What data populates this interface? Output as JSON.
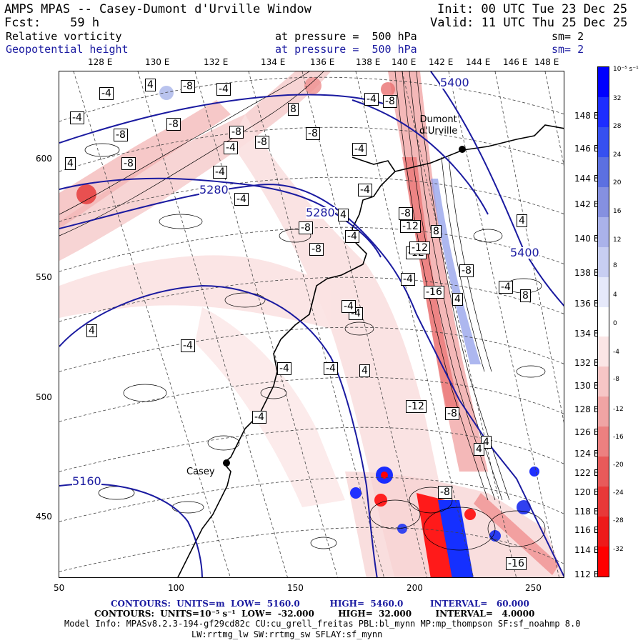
{
  "header": {
    "title": "AMPS MPAS -- Casey-Dumont d'Urville Window",
    "forecast": "Fcst:    59 h",
    "init": "Init: 00 UTC Tue 23 Dec 25",
    "valid": "Valid: 11 UTC Thu 25 Dec 25",
    "field1_name": "Relative vorticity",
    "field1_level": "at pressure =  500 hPa",
    "field1_sm": "sm= 2",
    "field2_name": "Geopotential height",
    "field2_level": "at pressure =  500 hPa",
    "field2_sm": "sm= 2"
  },
  "axes": {
    "top_longitudes": [
      "128 E",
      "130 E",
      "132 E",
      "134 E",
      "136 E",
      "138 E",
      "140 E",
      "142 E",
      "144 E",
      "146 E",
      "148 E"
    ],
    "right_longitudes": [
      "148 E",
      "146 E",
      "144 E",
      "142 E",
      "140 E",
      "138 E",
      "136 E",
      "134 E",
      "132 E",
      "130 E",
      "128 E",
      "126 E",
      "124 E",
      "122 E",
      "120 E",
      "118 E",
      "116 E",
      "114 E",
      "112 E"
    ],
    "left_ticks": [
      "600",
      "550",
      "500",
      "450"
    ],
    "bottom_ticks": [
      "50",
      "100",
      "150",
      "200",
      "250"
    ]
  },
  "map": {
    "stations": [
      {
        "name": "Dumont\nd'Urville"
      },
      {
        "name": "Casey"
      }
    ],
    "height_labels": [
      "5400",
      "5280",
      "5280",
      "5400",
      "5160"
    ],
    "vorticity_labels": [
      "-4",
      "4",
      "-8",
      "-4",
      "-8",
      "-4",
      "-8",
      "-8",
      "-4",
      "4",
      "-8",
      "8",
      "-8",
      "-8",
      "-4",
      "-4",
      "4",
      "-8",
      "-8",
      "-4",
      "-8",
      "-4",
      "-4",
      "-4",
      "-8",
      "-12",
      "-12",
      "-16",
      "-12",
      "-8",
      "-4",
      "8",
      "4",
      "8",
      "4",
      "-4",
      "-4",
      "-4",
      "-4",
      "-4",
      "-4",
      "-4",
      "-12",
      "-8",
      "4",
      "4",
      "4",
      "4",
      "-8",
      "-16"
    ]
  },
  "colorbar": {
    "unit": "10⁻⁵ s⁻¹",
    "labels": [
      "32",
      "28",
      "24",
      "20",
      "16",
      "12",
      "8",
      "4",
      "0",
      "-4",
      "-8",
      "-12",
      "-16",
      "-20",
      "-24",
      "-28",
      "-32"
    ],
    "colors": [
      "#0000ff",
      "#1d2dff",
      "#3650f0",
      "#5c70e0",
      "#8590e0",
      "#aab2ea",
      "#c8cef2",
      "#e6e9fa",
      "#ffffff",
      "#fbe6e6",
      "#f6c6c6",
      "#f0a4a4",
      "#ec8080",
      "#e85a5a",
      "#e83838",
      "#ee1a1a",
      "#ff0000"
    ]
  },
  "footer": {
    "contours1": "CONTOURS:  UNITS=m  LOW=  5160.0          HIGH=  5460.0         INTERVAL=   60.000",
    "contours2": "CONTOURS:  UNITS=10⁻⁵ s⁻¹  LOW=  -32.000        HIGH=  32.000        INTERVAL=   4.0000",
    "model_info": "Model Info: MPASv8.2.3-194-gf29cd82c CU:cu_grell_freitas PBL:bl_mynn MP:mp_thompson SF:sf_noahmp 8.0",
    "model_info2": "LW:rrtmg_lw SW:rrtmg_sw SFLAY:sf_mynn"
  },
  "colors": {
    "height_contour": "#1a1aa0",
    "coast": "#000000"
  }
}
